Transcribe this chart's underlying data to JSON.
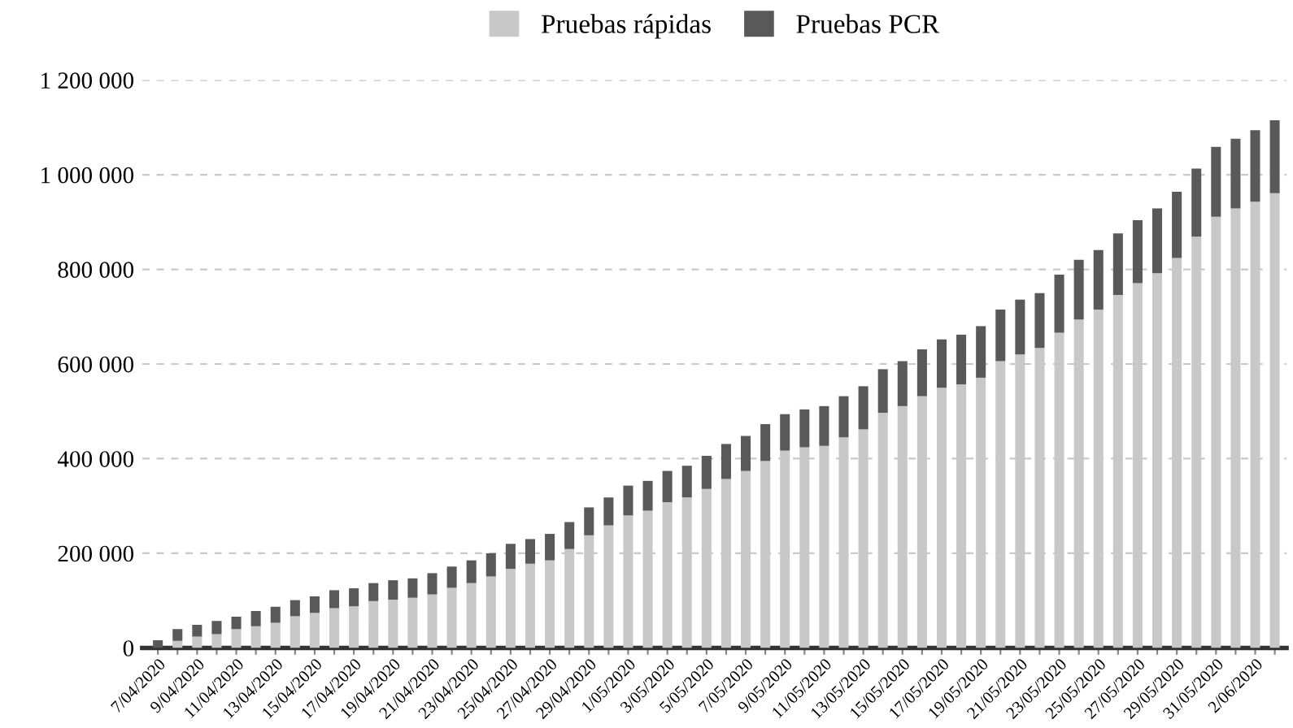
{
  "chart_data": {
    "type": "bar",
    "stacked": true,
    "categories": [
      "7/04/2020",
      null,
      "9/04/2020",
      null,
      "11/04/2020",
      null,
      "13/04/2020",
      null,
      "15/04/2020",
      null,
      "17/04/2020",
      null,
      "19/04/2020",
      null,
      "21/04/2020",
      null,
      "23/04/2020",
      null,
      "25/04/2020",
      null,
      "27/04/2020",
      null,
      "29/04/2020",
      null,
      "1/05/2020",
      null,
      "3/05/2020",
      null,
      "5/05/2020",
      null,
      "7/05/2020",
      null,
      "9/05/2020",
      null,
      "11/05/2020",
      null,
      "13/05/2020",
      null,
      "15/05/2020",
      null,
      "17/05/2020",
      null,
      "19/05/2020",
      null,
      "21/05/2020",
      null,
      "23/05/2020",
      null,
      "25/05/2020",
      null,
      "27/05/2020",
      null,
      "29/05/2020",
      null,
      "31/05/2020",
      null,
      "2/06/2020",
      null
    ],
    "series": [
      {
        "name": "Pruebas rápidas",
        "color": "#c8c8c8",
        "values": [
          null,
          15000,
          24000,
          29000,
          40000,
          46000,
          53000,
          67000,
          74000,
          84000,
          88000,
          99000,
          102000,
          106000,
          113000,
          127000,
          137000,
          151000,
          167000,
          178000,
          185000,
          209000,
          238000,
          259000,
          280000,
          290000,
          308000,
          318000,
          336000,
          357000,
          374000,
          395000,
          417000,
          424000,
          427000,
          445000,
          462000,
          497000,
          511000,
          532000,
          550000,
          557000,
          571000,
          606000,
          620000,
          634000,
          666000,
          694000,
          715000,
          746000,
          771000,
          792000,
          824000,
          869000,
          911000,
          929000,
          943000,
          961000
        ]
      },
      {
        "name": "Pruebas PCR",
        "color": "#595959",
        "values": [
          16000,
          25000,
          25000,
          28000,
          26000,
          32000,
          34000,
          34000,
          35000,
          38000,
          38000,
          38000,
          41000,
          41000,
          45000,
          45000,
          48000,
          49000,
          53000,
          52000,
          56000,
          57000,
          59000,
          59000,
          63000,
          63000,
          66000,
          67000,
          70000,
          74000,
          74000,
          78000,
          77000,
          80000,
          84000,
          87000,
          91000,
          92000,
          95000,
          99000,
          102000,
          105000,
          109000,
          109000,
          116000,
          116000,
          123000,
          126000,
          126000,
          130000,
          133000,
          137000,
          140000,
          144000,
          148000,
          147000,
          151000,
          154000
        ]
      }
    ],
    "ylim": [
      0,
      1200000
    ],
    "yticks": [
      {
        "value": 0,
        "label": "0"
      },
      {
        "value": 200000,
        "label": "200 000"
      },
      {
        "value": 400000,
        "label": "400 000"
      },
      {
        "value": 600000,
        "label": "600 000"
      },
      {
        "value": 800000,
        "label": "800 000"
      },
      {
        "value": 1000000,
        "label": "1 000 000"
      },
      {
        "value": 1200000,
        "label": "1 200 000"
      }
    ],
    "grid": "y",
    "legend": "top"
  }
}
